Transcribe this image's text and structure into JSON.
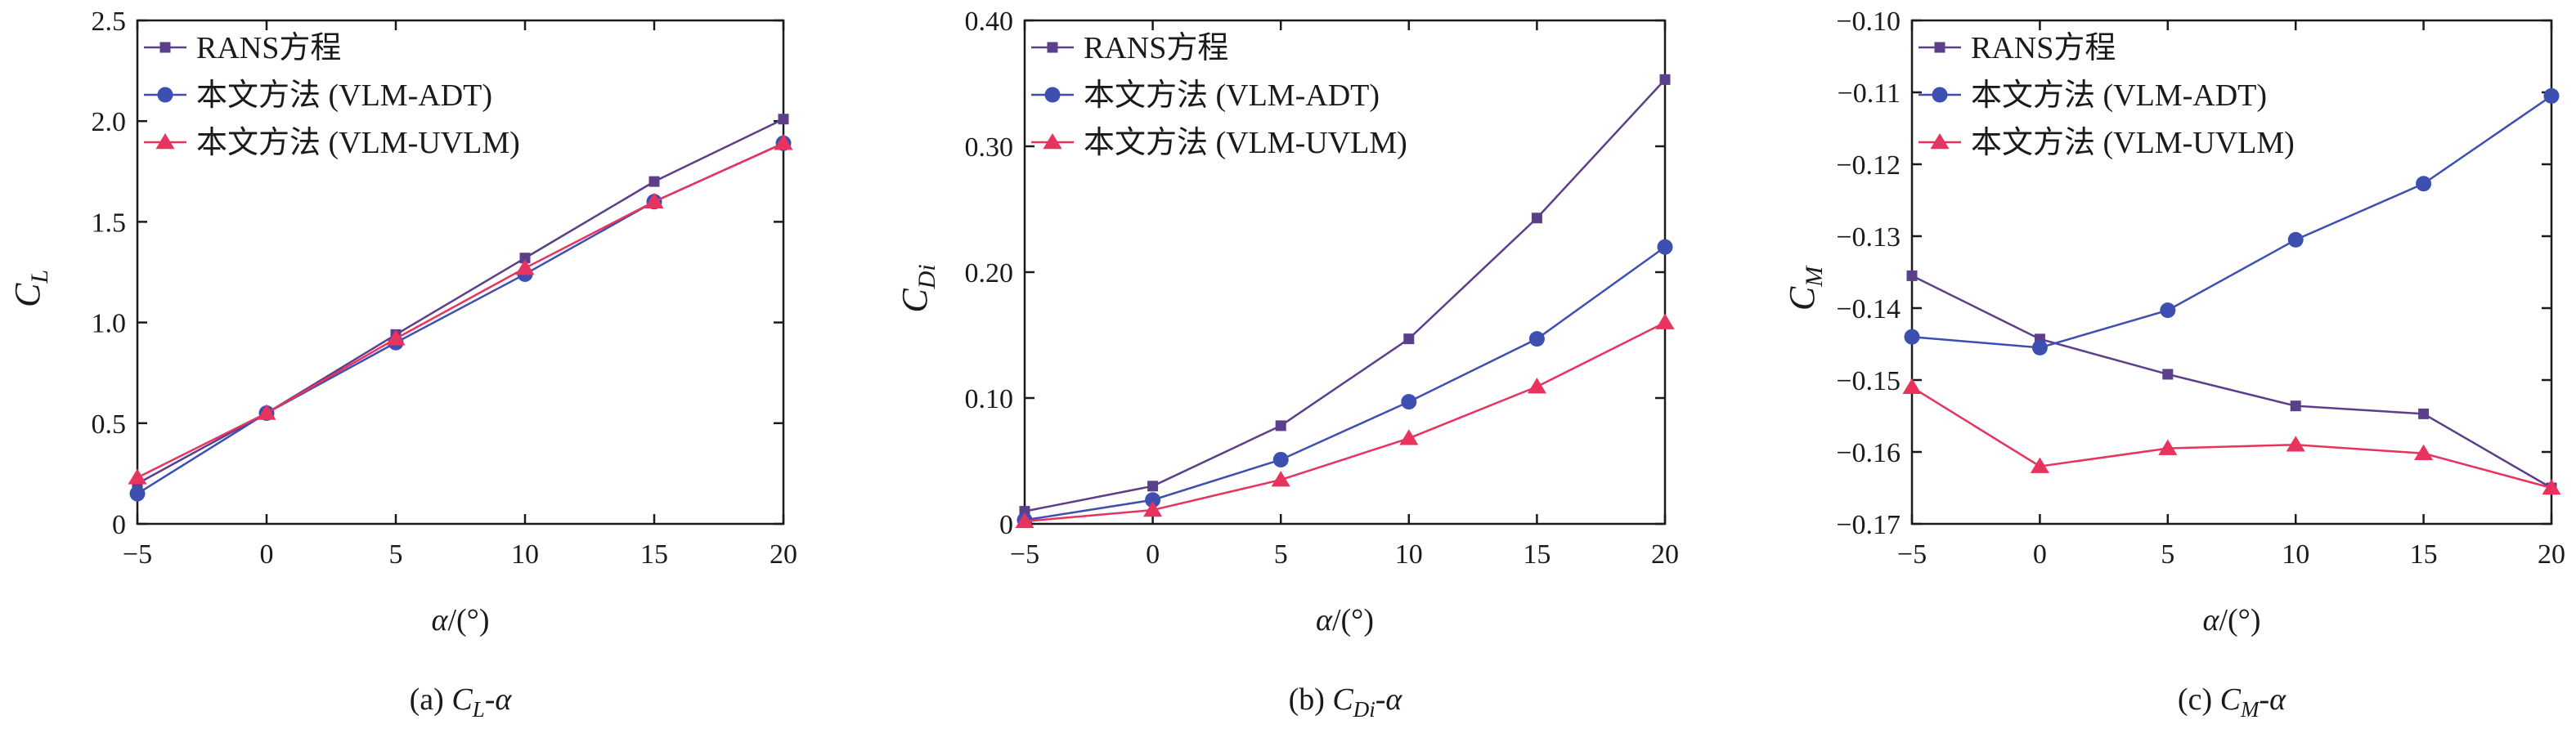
{
  "colors": {
    "rans": "#5b3f8a",
    "adt": "#3d4fb0",
    "uvlm": "#e8335f"
  },
  "legend": {
    "rans": "RANS方程",
    "adt": "本文方法 (VLM-ADT)",
    "uvlm": "本文方法 (VLM-UVLM)"
  },
  "x_label": {
    "sym": "α",
    "unit": "/(°)"
  },
  "chart_data": [
    {
      "type": "line",
      "x": [
        -5,
        0,
        5,
        10,
        15,
        20
      ],
      "xlim": [
        -5,
        20
      ],
      "ylim": [
        0,
        2.5
      ],
      "xticks": [
        "−5",
        "0",
        "5",
        "10",
        "15",
        "20"
      ],
      "yticks": [
        0,
        0.5,
        1.0,
        1.5,
        2.0,
        2.5
      ],
      "ytick_labels": [
        "0",
        "0.5",
        "1.0",
        "1.5",
        "2.0",
        "2.5"
      ],
      "ylabel": {
        "main": "C",
        "sub": "L"
      },
      "caption": {
        "prefix": "(a) ",
        "main": "C",
        "sub": "L",
        "suffix": "-α"
      },
      "legend_items": [
        "rans",
        "adt",
        "uvlm"
      ],
      "series": [
        {
          "key": "rans",
          "marker": "square",
          "values": [
            0.2,
            0.55,
            0.94,
            1.32,
            1.7,
            2.01
          ]
        },
        {
          "key": "adt",
          "marker": "circle",
          "values": [
            0.15,
            0.55,
            0.9,
            1.24,
            1.6,
            1.89
          ]
        },
        {
          "key": "uvlm",
          "marker": "triangle",
          "values": [
            0.23,
            0.55,
            0.92,
            1.27,
            1.6,
            1.89
          ]
        }
      ]
    },
    {
      "type": "line",
      "x": [
        -5,
        0,
        5,
        10,
        15,
        20
      ],
      "xlim": [
        -5,
        20
      ],
      "ylim": [
        0,
        0.4
      ],
      "xticks": [
        "−5",
        "0",
        "5",
        "10",
        "15",
        "20"
      ],
      "yticks": [
        0,
        0.1,
        0.2,
        0.3,
        0.4
      ],
      "ytick_labels": [
        "0",
        "0.10",
        "0.20",
        "0.30",
        "0.40"
      ],
      "ylabel": {
        "main": "C",
        "sub": "Di"
      },
      "caption": {
        "prefix": "(b) ",
        "main": "C",
        "sub": "Di",
        "suffix": "-α"
      },
      "legend_items": [
        "rans",
        "adt",
        "uvlm"
      ],
      "series": [
        {
          "key": "rans",
          "marker": "square",
          "values": [
            0.01,
            0.03,
            0.078,
            0.147,
            0.243,
            0.353
          ]
        },
        {
          "key": "adt",
          "marker": "circle",
          "values": [
            0.003,
            0.019,
            0.051,
            0.097,
            0.147,
            0.22
          ]
        },
        {
          "key": "uvlm",
          "marker": "triangle",
          "values": [
            0.002,
            0.011,
            0.035,
            0.068,
            0.109,
            0.16
          ]
        }
      ]
    },
    {
      "type": "line",
      "x": [
        -5,
        0,
        5,
        10,
        15,
        20
      ],
      "xlim": [
        -5,
        20
      ],
      "ylim": [
        -0.17,
        -0.1
      ],
      "xticks": [
        "−5",
        "0",
        "5",
        "10",
        "15",
        "20"
      ],
      "yticks": [
        -0.17,
        -0.16,
        -0.15,
        -0.14,
        -0.13,
        -0.12,
        -0.11,
        -0.1
      ],
      "ytick_labels": [
        "−0.17",
        "−0.16",
        "−0.15",
        "−0.14",
        "−0.13",
        "−0.12",
        "−0.11",
        "−0.10"
      ],
      "ylabel": {
        "main": "C",
        "sub": "M"
      },
      "caption": {
        "prefix": "(c) ",
        "main": "C",
        "sub": "M",
        "suffix": "-α"
      },
      "legend_items": [
        "rans",
        "adt",
        "uvlm"
      ],
      "series": [
        {
          "key": "rans",
          "marker": "square",
          "values": [
            -0.1355,
            -0.1443,
            -0.1492,
            -0.1536,
            -0.1547,
            -0.165
          ]
        },
        {
          "key": "adt",
          "marker": "circle",
          "values": [
            -0.144,
            -0.1455,
            -0.1403,
            -0.1305,
            -0.1227,
            -0.1105
          ]
        },
        {
          "key": "uvlm",
          "marker": "triangle",
          "values": [
            -0.151,
            -0.162,
            -0.1595,
            -0.159,
            -0.1602,
            -0.165
          ]
        }
      ]
    }
  ]
}
